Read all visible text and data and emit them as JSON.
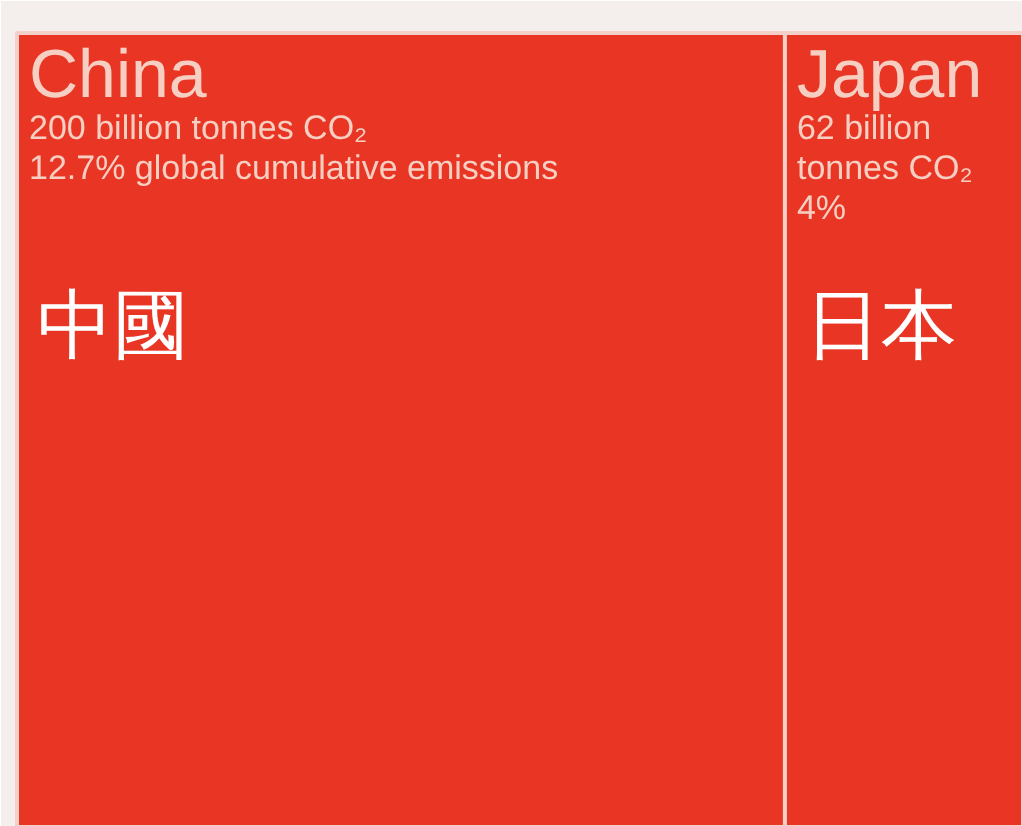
{
  "chart_data": {
    "type": "other",
    "categories": [
      "China",
      "Japan"
    ],
    "values": [
      200,
      62
    ],
    "colors": [
      "#e83524",
      "#e83524"
    ],
    "value_labels": [
      "200 billion tonnes CO₂",
      "62 billion tonnes CO₂"
    ],
    "annotations": [
      "12.7% global cumulative emissions",
      "4%",
      "中國",
      "日本"
    ]
  }
}
